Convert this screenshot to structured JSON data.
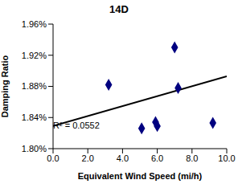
{
  "chart_data": {
    "type": "scatter",
    "title": "14D",
    "x_label": "Equivalent Wind Speed (mi/h)",
    "y_label": "Damping Ratio",
    "x": [
      3.2,
      5.1,
      5.9,
      6.0,
      7.0,
      7.2,
      9.2
    ],
    "values": [
      1.882,
      1.826,
      1.834,
      1.829,
      1.93,
      1.878,
      1.833
    ],
    "color": "#000080",
    "marker": "diamond",
    "trendline": {
      "x": [
        0,
        10
      ],
      "values": [
        1.829,
        1.893
      ],
      "color": "#000000"
    },
    "annotation": "R² = 0.0552",
    "xlim": [
      0,
      10
    ],
    "xticks": [
      {
        "value": 0,
        "label": "0.0"
      },
      {
        "value": 2,
        "label": "2.0"
      },
      {
        "value": 4,
        "label": "4.0"
      },
      {
        "value": 6,
        "label": "6.0"
      },
      {
        "value": 8,
        "label": "8.0"
      },
      {
        "value": 10,
        "label": "10.0"
      }
    ],
    "ylim": [
      1.8,
      1.96
    ],
    "yticks": [
      {
        "value": 1.8,
        "label": "1.80%"
      },
      {
        "value": 1.84,
        "label": "1.84%"
      },
      {
        "value": 1.88,
        "label": "1.88%"
      },
      {
        "value": 1.92,
        "label": "1.92%"
      },
      {
        "value": 1.96,
        "label": "1.96%"
      }
    ],
    "grid": false
  }
}
